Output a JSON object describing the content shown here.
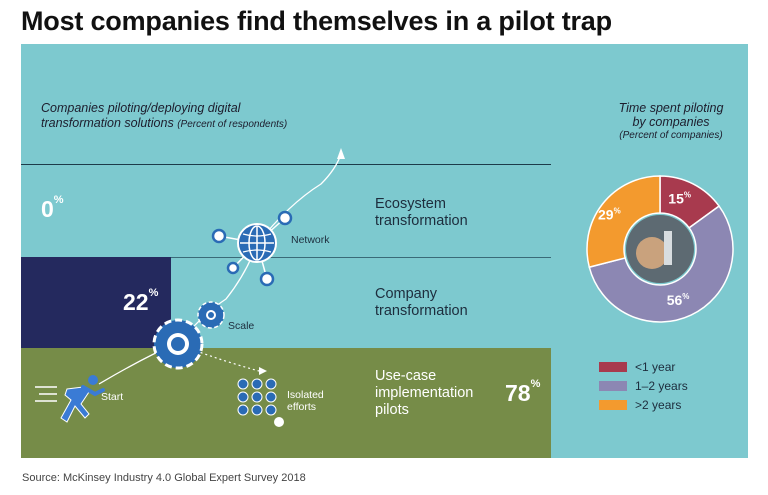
{
  "title": "Most companies find themselves in a pilot trap",
  "left_heading": {
    "main_line1": "Companies piloting/deploying digital",
    "main_line2": "transformation solutions",
    "note": "(Percent of respondents)"
  },
  "stages": [
    {
      "pct": "0",
      "line1": "Ecosystem",
      "line2": "transformation",
      "line3": "",
      "icon_label": "Network"
    },
    {
      "pct": "22",
      "line1": "Company",
      "line2": "transformation",
      "line3": "",
      "icon_label": "Scale"
    },
    {
      "pct": "78",
      "line1": "Use-case",
      "line2": "implementation",
      "line3": "pilots",
      "icon_label": "Start"
    }
  ],
  "percent_sign": "%",
  "isolated_label_line1": "Isolated",
  "isolated_label_line2": "efforts",
  "right_heading": {
    "line1": "Time spent piloting",
    "line2": "by companies",
    "note": "(Percent of companies)"
  },
  "chart_data": {
    "type": "pie",
    "title": "Time spent piloting by companies",
    "unit_note": "(Percent of companies)",
    "slices": [
      {
        "label": "<1 year",
        "value": 15,
        "color": "#a83a4e"
      },
      {
        "label": "1–2 years",
        "value": 56,
        "color": "#8c87b3"
      },
      {
        "label": ">2 years",
        "value": 29,
        "color": "#f39a2e"
      }
    ],
    "legend_position": "bottom"
  },
  "source": "Source: McKinsey Industry 4.0 Global Expert Survey 2018"
}
